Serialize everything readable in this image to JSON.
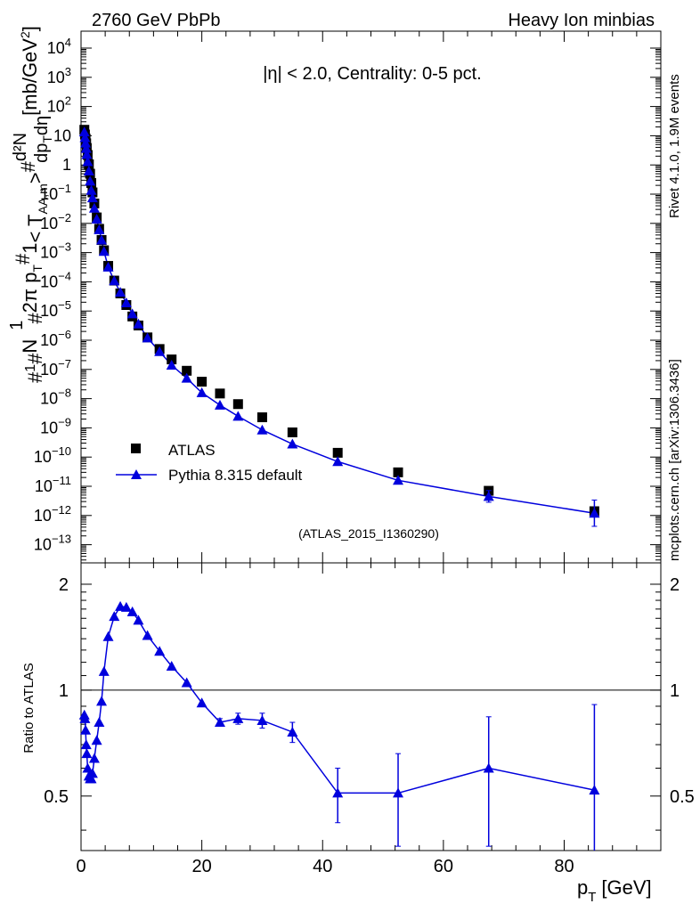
{
  "header": {
    "left": "2760 GeV PbPb",
    "right": "Heavy Ion minbias",
    "side_top": "Rivet 4.1.0,  1.9M events",
    "side_bottom": "mcplots.cern.ch [arXiv:1306.3436]"
  },
  "colors": {
    "mc": "#0000dd",
    "data": "#000000",
    "watermark": "#a0a0a0",
    "side": "#808080"
  },
  "chart_data": [
    {
      "type": "scatter",
      "title": "|η| < 2.0, Centrality: 0-5 pct.",
      "watermark": "(ATLAS_2015_I1360290)",
      "ylabel_parts": [
        "#",
        "1",
        "#",
        "N",
        "1",
        "#",
        "2π p",
        "T",
        "#",
        "1",
        "< T",
        "AA,m",
        ">",
        "#",
        "d²N",
        "dp",
        "T",
        "dη",
        "[mb/GeV",
        "2",
        "]"
      ],
      "yscale": "log",
      "ylim": [
        1e-14,
        100000.0
      ],
      "xlim": [
        0,
        96
      ],
      "y_ticklabels": [
        {
          "m": "10",
          "e": "4"
        },
        {
          "m": "10",
          "e": "3"
        },
        {
          "m": "10",
          "e": "2"
        },
        {
          "m": "10",
          "e": ""
        },
        {
          "m": "1",
          "e": ""
        },
        {
          "m": "10",
          "e": "−1"
        },
        {
          "m": "10",
          "e": "−2"
        },
        {
          "m": "10",
          "e": "−3"
        },
        {
          "m": "10",
          "e": "−4"
        },
        {
          "m": "10",
          "e": "−5"
        },
        {
          "m": "10",
          "e": "−6"
        },
        {
          "m": "10",
          "e": "−7"
        },
        {
          "m": "10",
          "e": "−8"
        },
        {
          "m": "10",
          "e": "−9"
        },
        {
          "m": "10",
          "e": "−10"
        },
        {
          "m": "10",
          "e": "−11"
        },
        {
          "m": "10",
          "e": "−12"
        },
        {
          "m": "10",
          "e": "−13"
        }
      ],
      "legend": {
        "placement": "lower-left",
        "entries": [
          "ATLAS",
          "Pythia 8.315 default"
        ]
      },
      "series": [
        {
          "name": "ATLAS",
          "marker": "square",
          "x": [
            0.55,
            0.65,
            0.75,
            0.85,
            0.95,
            1.1,
            1.3,
            1.5,
            1.7,
            1.9,
            2.2,
            2.6,
            3.0,
            3.4,
            3.8,
            4.5,
            5.5,
            6.5,
            7.5,
            8.5,
            9.5,
            11,
            13,
            15,
            17.5,
            20,
            23,
            26,
            30,
            35,
            42.5,
            52.5,
            67.5,
            85
          ],
          "values": [
            16,
            11,
            8,
            5.5,
            3.8,
            2.2,
            1.05,
            0.5,
            0.24,
            0.115,
            0.048,
            0.016,
            0.0065,
            0.0027,
            0.0012,
            0.00035,
            0.00011,
            4e-05,
            1.6e-05,
            6.5e-06,
            3.2e-06,
            1.25e-06,
            5e-07,
            2.2e-07,
            9e-08,
            3.8e-08,
            1.5e-08,
            6.5e-09,
            2.3e-09,
            7e-10,
            1.4e-10,
            3e-11,
            7e-12,
            1.4e-12
          ]
        },
        {
          "name": "Pythia 8.315 default",
          "marker": "triangle",
          "x": [
            0.55,
            0.65,
            0.75,
            0.85,
            0.95,
            1.1,
            1.3,
            1.5,
            1.7,
            1.9,
            2.2,
            2.6,
            3.0,
            3.4,
            3.8,
            4.5,
            5.5,
            6.5,
            7.5,
            8.5,
            9.5,
            11,
            13,
            15,
            17.5,
            20,
            23,
            26,
            30,
            35,
            42.5,
            52.5,
            67.5,
            85
          ],
          "values": [
            13.5,
            8.6,
            5.6,
            3.7,
            2.3,
            1.3,
            0.62,
            0.28,
            0.135,
            0.075,
            0.033,
            0.014,
            0.0061,
            0.0027,
            0.0011,
            0.00032,
            0.000108,
            4.4e-05,
            1.9e-05,
            8e-06,
            3.6e-06,
            1.2e-06,
            4.1e-07,
            1.4e-07,
            5e-08,
            1.6e-08,
            6e-09,
            2.5e-09,
            8.5e-10,
            2.8e-10,
            7e-11,
            1.6e-11,
            4.5e-12,
            1.2e-12
          ],
          "errors": [
            0,
            0,
            0,
            0,
            0,
            0,
            0,
            0,
            0,
            0,
            0,
            0,
            0,
            0,
            0,
            0,
            0,
            0,
            0,
            0,
            0,
            0,
            0,
            0,
            0,
            0,
            0,
            0,
            0,
            0,
            0,
            0,
            0.2,
            0.45
          ]
        }
      ]
    },
    {
      "type": "line",
      "ylabel": "Ratio to ATLAS",
      "xlabel_main": "p",
      "xlabel_sub": "T",
      "xlabel_unit": "[GeV]",
      "ylim": [
        0.35,
        2.3
      ],
      "xlim": [
        0,
        96
      ],
      "reference": 1,
      "x_ticklabels": [
        "0",
        "20",
        "40",
        "60",
        "80"
      ],
      "y_ticklabels": [
        "0.5",
        "1",
        "2"
      ],
      "series": [
        {
          "name": "Pythia 8.315 default",
          "x": [
            0.55,
            0.65,
            0.75,
            0.85,
            0.95,
            1.1,
            1.3,
            1.5,
            1.7,
            1.9,
            2.2,
            2.6,
            3.0,
            3.4,
            3.8,
            4.5,
            5.5,
            6.5,
            7.5,
            8.5,
            9.5,
            11,
            13,
            15,
            17.5,
            20,
            23,
            26,
            30,
            35,
            42.5,
            52.5,
            67.5,
            85
          ],
          "values": [
            0.85,
            0.83,
            0.77,
            0.7,
            0.66,
            0.6,
            0.57,
            0.56,
            0.56,
            0.58,
            0.64,
            0.72,
            0.81,
            0.93,
            1.13,
            1.42,
            1.62,
            1.73,
            1.72,
            1.67,
            1.58,
            1.43,
            1.29,
            1.17,
            1.05,
            0.92,
            0.81,
            0.83,
            0.82,
            0.76,
            0.51,
            0.51,
            0.6,
            0.52
          ],
          "errors": [
            0.01,
            0.01,
            0.01,
            0.01,
            0.01,
            0.01,
            0.01,
            0.01,
            0.01,
            0.01,
            0.01,
            0.01,
            0.01,
            0.01,
            0.01,
            0.01,
            0.01,
            0.01,
            0.01,
            0.01,
            0.01,
            0.01,
            0.01,
            0.01,
            0.01,
            0.01,
            0.02,
            0.03,
            0.04,
            0.05,
            0.09,
            0.15,
            0.24,
            0.39
          ]
        }
      ]
    }
  ]
}
